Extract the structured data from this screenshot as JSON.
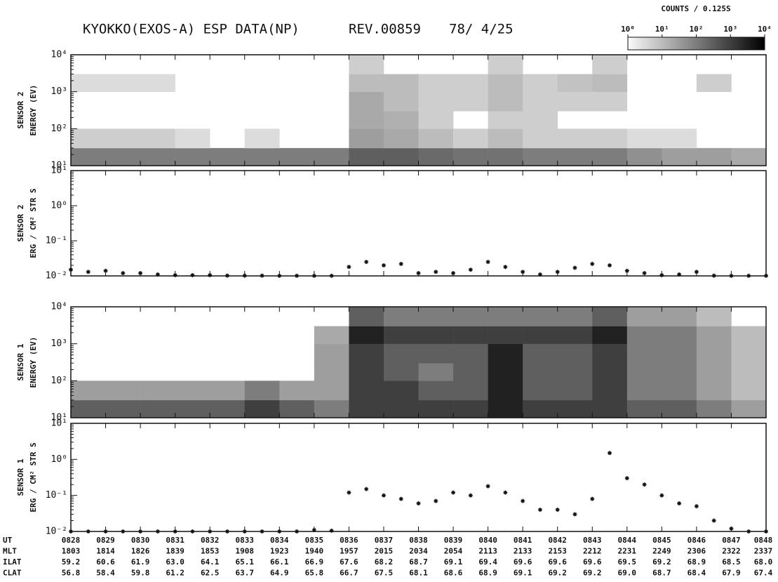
{
  "header": {
    "title": "KYOKKO(EXOS-A) ESP DATA(NP)",
    "rev": "REV.00859",
    "date": "78/ 4/25"
  },
  "colorbar": {
    "label": "COUNTS / 0.125S",
    "lim": [
      1,
      10000
    ],
    "ticks": [
      {
        "value": 1,
        "label": "10⁰"
      },
      {
        "value": 10,
        "label": "10¹"
      },
      {
        "value": 100,
        "label": "10²"
      },
      {
        "value": 1000,
        "label": "10³"
      },
      {
        "value": 10000,
        "label": "10⁴"
      }
    ]
  },
  "chart_data": [
    {
      "type": "heatmap",
      "ylabel": [
        "SENSOR 2",
        "ENERGY  (EV)"
      ],
      "log_y": true,
      "xlim": [
        508,
        528
      ],
      "xticks": [
        508,
        509,
        510,
        511,
        512,
        513,
        514,
        515,
        516,
        517,
        518,
        519,
        520,
        521,
        522,
        523,
        524,
        525,
        526,
        527,
        528
      ],
      "ylim": [
        10,
        10000
      ],
      "yticks": [
        {
          "value": 10,
          "label": "10¹"
        },
        {
          "value": 100,
          "label": "10²"
        },
        {
          "value": 1000,
          "label": "10³"
        },
        {
          "value": 10000,
          "label": "10⁴"
        }
      ],
      "x_edges": [
        508,
        509,
        510,
        511,
        512,
        513,
        514,
        515,
        516,
        517,
        518,
        519,
        520,
        521,
        522,
        523,
        524,
        525,
        526,
        527,
        528
      ],
      "y_edges": [
        10,
        30,
        100,
        300,
        1000,
        3000,
        10000
      ],
      "values": [
        [
          100,
          100,
          100,
          100,
          100,
          100,
          100,
          100,
          300,
          300,
          200,
          150,
          150,
          100,
          100,
          100,
          50,
          30,
          30,
          20
        ],
        [
          5,
          5,
          5,
          3,
          null,
          3,
          null,
          null,
          30,
          20,
          10,
          5,
          10,
          5,
          5,
          5,
          3,
          3,
          null,
          null
        ],
        [
          null,
          null,
          null,
          null,
          null,
          null,
          null,
          null,
          20,
          15,
          5,
          null,
          5,
          5,
          null,
          null,
          null,
          null,
          null,
          null
        ],
        [
          null,
          null,
          null,
          null,
          null,
          null,
          null,
          null,
          20,
          10,
          5,
          5,
          10,
          5,
          5,
          5,
          null,
          null,
          null,
          null
        ],
        [
          3,
          3,
          3,
          null,
          null,
          null,
          null,
          null,
          10,
          10,
          5,
          5,
          10,
          5,
          8,
          10,
          null,
          null,
          5,
          null
        ],
        [
          null,
          null,
          null,
          null,
          null,
          null,
          null,
          null,
          5,
          null,
          null,
          null,
          5,
          null,
          null,
          5,
          null,
          null,
          null,
          null
        ]
      ]
    },
    {
      "type": "scatter",
      "ylabel": [
        "SENSOR 2",
        "ERG / CM² STR S"
      ],
      "log_y": true,
      "xlim": [
        508,
        528
      ],
      "xticks": [
        508,
        509,
        510,
        511,
        512,
        513,
        514,
        515,
        516,
        517,
        518,
        519,
        520,
        521,
        522,
        523,
        524,
        525,
        526,
        527,
        528
      ],
      "ylim": [
        0.01,
        10
      ],
      "yticks": [
        {
          "value": 0.01,
          "label": "10⁻²"
        },
        {
          "value": 0.1,
          "label": "10⁻¹"
        },
        {
          "value": 1,
          "label": "10⁰"
        },
        {
          "value": 10,
          "label": "10¹"
        }
      ],
      "x": [
        508,
        508.5,
        509,
        509.5,
        510,
        510.5,
        511,
        511.5,
        512,
        512.5,
        513,
        513.5,
        514,
        514.5,
        515,
        515.5,
        516,
        516.5,
        517,
        517.5,
        518,
        518.5,
        519,
        519.5,
        520,
        520.5,
        521,
        521.5,
        522,
        522.5,
        523,
        523.5,
        524,
        524.5,
        525,
        525.5,
        526,
        526.5,
        527,
        527.5,
        528
      ],
      "values": [
        0.015,
        0.013,
        0.014,
        0.012,
        0.012,
        0.011,
        0.0105,
        0.0105,
        0.0105,
        0.0102,
        0.0102,
        0.0102,
        0.0101,
        0.0101,
        0.0101,
        0.0101,
        0.018,
        0.025,
        0.02,
        0.022,
        0.012,
        0.013,
        0.012,
        0.015,
        0.025,
        0.018,
        0.013,
        0.011,
        0.013,
        0.017,
        0.022,
        0.02,
        0.014,
        0.012,
        0.0105,
        0.011,
        0.013,
        0.0102,
        0.0101,
        0.0101,
        0.0101
      ]
    },
    {
      "type": "heatmap",
      "ylabel": [
        "SENSOR 1",
        "ENERGY  (EV)"
      ],
      "log_y": true,
      "xlim": [
        508,
        528
      ],
      "xticks": [
        508,
        509,
        510,
        511,
        512,
        513,
        514,
        515,
        516,
        517,
        518,
        519,
        520,
        521,
        522,
        523,
        524,
        525,
        526,
        527,
        528
      ],
      "ylim": [
        10,
        10000
      ],
      "yticks": [
        {
          "value": 10,
          "label": "10¹"
        },
        {
          "value": 100,
          "label": "10²"
        },
        {
          "value": 1000,
          "label": "10³"
        },
        {
          "value": 10000,
          "label": "10⁴"
        }
      ],
      "x_edges": [
        508,
        509,
        510,
        511,
        512,
        513,
        514,
        515,
        516,
        517,
        518,
        519,
        520,
        521,
        522,
        523,
        524,
        525,
        526,
        527,
        528
      ],
      "y_edges": [
        10,
        30,
        100,
        300,
        1000,
        3000,
        10000
      ],
      "values": [
        [
          300,
          300,
          300,
          300,
          300,
          1000,
          300,
          100,
          1000,
          1000,
          1000,
          1000,
          3000,
          1000,
          1000,
          1000,
          300,
          300,
          100,
          30
        ],
        [
          30,
          30,
          30,
          30,
          30,
          100,
          30,
          30,
          1000,
          1000,
          300,
          300,
          3000,
          300,
          300,
          1000,
          100,
          100,
          30,
          10
        ],
        [
          null,
          null,
          null,
          null,
          null,
          null,
          null,
          30,
          1000,
          300,
          100,
          300,
          3000,
          300,
          300,
          1000,
          100,
          100,
          30,
          10
        ],
        [
          null,
          null,
          null,
          null,
          null,
          null,
          null,
          30,
          1000,
          300,
          300,
          300,
          3000,
          300,
          300,
          1000,
          100,
          100,
          30,
          10
        ],
        [
          null,
          null,
          null,
          null,
          null,
          null,
          null,
          20,
          3000,
          1000,
          1000,
          1000,
          1000,
          1000,
          1000,
          3000,
          100,
          100,
          30,
          10
        ],
        [
          null,
          null,
          null,
          null,
          null,
          null,
          null,
          null,
          300,
          100,
          100,
          100,
          100,
          100,
          100,
          300,
          30,
          30,
          10,
          null
        ]
      ]
    },
    {
      "type": "scatter",
      "ylabel": [
        "SENSOR 1",
        "ERG / CM² STR S"
      ],
      "log_y": true,
      "xlim": [
        508,
        528
      ],
      "xticks": [
        508,
        509,
        510,
        511,
        512,
        513,
        514,
        515,
        516,
        517,
        518,
        519,
        520,
        521,
        522,
        523,
        524,
        525,
        526,
        527,
        528
      ],
      "ylim": [
        0.01,
        10
      ],
      "yticks": [
        {
          "value": 0.01,
          "label": "10⁻²"
        },
        {
          "value": 0.1,
          "label": "10⁻¹"
        },
        {
          "value": 1,
          "label": "10⁰"
        },
        {
          "value": 10,
          "label": "10¹"
        }
      ],
      "x": [
        508,
        508.5,
        509,
        509.5,
        510,
        510.5,
        511,
        511.5,
        512,
        512.5,
        513,
        513.5,
        514,
        514.5,
        515,
        515.5,
        516,
        516.5,
        517,
        517.5,
        518,
        518.5,
        519,
        519.5,
        520,
        520.5,
        521,
        521.5,
        522,
        522.5,
        523,
        523.5,
        524,
        524.5,
        525,
        525.5,
        526,
        526.5,
        527,
        527.5,
        528
      ],
      "values": [
        0.01,
        0.01,
        0.01,
        0.01,
        0.01,
        0.01,
        0.01,
        0.01,
        0.01,
        0.01,
        0.01,
        0.01,
        0.01,
        0.01,
        0.011,
        0.0105,
        0.12,
        0.15,
        0.1,
        0.08,
        0.06,
        0.07,
        0.12,
        0.1,
        0.18,
        0.12,
        0.07,
        0.04,
        0.04,
        0.03,
        0.08,
        1.5,
        0.3,
        0.2,
        0.1,
        0.06,
        0.05,
        0.02,
        0.012,
        0.01,
        0.01
      ]
    }
  ],
  "ephemeris": {
    "rows": [
      {
        "label": "UT",
        "values": [
          "0828",
          "0829",
          "0830",
          "0831",
          "0832",
          "0833",
          "0834",
          "0835",
          "0836",
          "0837",
          "0838",
          "0839",
          "0840",
          "0841",
          "0842",
          "0843",
          "0844",
          "0845",
          "0846",
          "0847",
          "0848"
        ]
      },
      {
        "label": "MLT",
        "values": [
          "1803",
          "1814",
          "1826",
          "1839",
          "1853",
          "1908",
          "1923",
          "1940",
          "1957",
          "2015",
          "2034",
          "2054",
          "2113",
          "2133",
          "2153",
          "2212",
          "2231",
          "2249",
          "2306",
          "2322",
          "2337"
        ]
      },
      {
        "label": "ILAT",
        "values": [
          "59.2",
          "60.6",
          "61.9",
          "63.0",
          "64.1",
          "65.1",
          "66.1",
          "66.9",
          "67.6",
          "68.2",
          "68.7",
          "69.1",
          "69.4",
          "69.6",
          "69.6",
          "69.6",
          "69.5",
          "69.2",
          "68.9",
          "68.5",
          "68.0"
        ]
      },
      {
        "label": "CLAT",
        "values": [
          "56.8",
          "58.4",
          "59.8",
          "61.2",
          "62.5",
          "63.7",
          "64.9",
          "65.8",
          "66.7",
          "67.5",
          "68.1",
          "68.6",
          "68.9",
          "69.1",
          "69.2",
          "69.2",
          "69.0",
          "68.7",
          "68.4",
          "67.9",
          "67.4"
        ]
      }
    ]
  }
}
